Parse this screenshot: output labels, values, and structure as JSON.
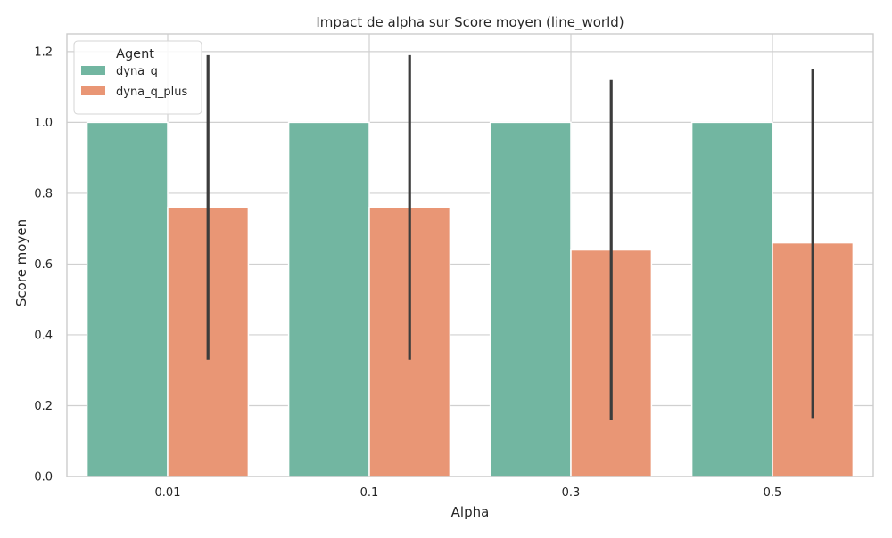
{
  "chart_data": {
    "type": "bar",
    "title": "Impact de alpha sur Score moyen (line_world)",
    "xlabel": "Alpha",
    "ylabel": "Score moyen",
    "categories": [
      "0.01",
      "0.1",
      "0.3",
      "0.5"
    ],
    "ylim": [
      0,
      1.25
    ],
    "yticks": [
      "0.0",
      "0.2",
      "0.4",
      "0.6",
      "0.8",
      "1.0",
      "1.2"
    ],
    "grid": true,
    "legend": {
      "title": "Agent",
      "placement": "top-left"
    },
    "series": [
      {
        "name": "dyna_q",
        "color": "#72b6a1",
        "values": [
          1.0,
          1.0,
          1.0,
          1.0
        ],
        "error_low": [
          null,
          null,
          null,
          null
        ],
        "error_high": [
          null,
          null,
          null,
          null
        ]
      },
      {
        "name": "dyna_q_plus",
        "color": "#e99675",
        "values": [
          0.76,
          0.76,
          0.64,
          0.66
        ],
        "error_low": [
          0.33,
          0.33,
          0.16,
          0.165
        ],
        "error_high": [
          1.19,
          1.19,
          1.12,
          1.15
        ]
      }
    ]
  }
}
